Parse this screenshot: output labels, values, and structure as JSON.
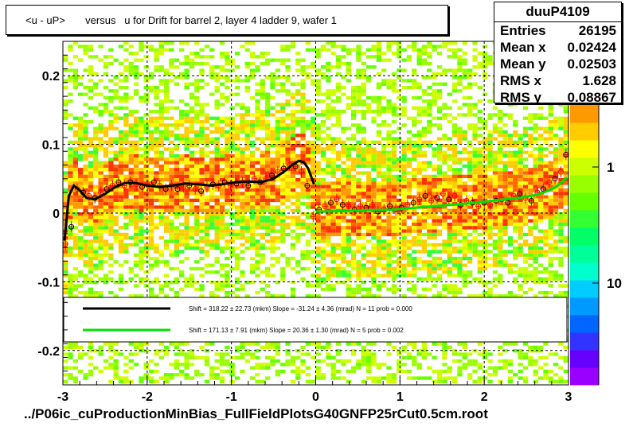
{
  "title": "<u - uP>       versus   u for Drift for barrel 2, layer 4 ladder 9, wafer 1",
  "stats": {
    "name": "duuP4109",
    "rows": [
      {
        "label": "Entries",
        "value": "26195"
      },
      {
        "label": "Mean x",
        "value": "0.02424"
      },
      {
        "label": "Mean y",
        "value": "0.02503"
      },
      {
        "label": "RMS x",
        "value": "1.628"
      },
      {
        "label": "RMS y",
        "value": "0.08867"
      }
    ]
  },
  "footer": "../P06ic_cuProductionMinBias_FullFieldPlotsG40GNFP25rCut0.5cm.root",
  "colors": {
    "fit_black": "#000000",
    "fit_green": "#00e000",
    "points": "#ff0000",
    "palette": [
      "#9900ff",
      "#6600ff",
      "#3333ff",
      "#0066ff",
      "#0099ff",
      "#00ccff",
      "#00ffcc",
      "#00ff99",
      "#00ff66",
      "#33ff33",
      "#66ff00",
      "#99ff00",
      "#ccff00",
      "#ffff00",
      "#ffcc00",
      "#ff9900"
    ]
  },
  "chart_data": {
    "type": "heatmap",
    "title": "<u - uP>       versus   u for Drift for barrel 2, layer 4 ladder 9, wafer 1",
    "xlabel": "",
    "ylabel": "",
    "xlim": [
      -3,
      3
    ],
    "ylim": [
      -0.25,
      0.25
    ],
    "x_ticks": [
      "-3",
      "-2",
      "-1",
      "0",
      "1",
      "2",
      "3"
    ],
    "y_ticks": [
      "-0.2",
      "-0.1",
      "0",
      "0.1",
      "0.2"
    ],
    "z_scale": "log",
    "z_ticks": [
      "1",
      "10"
    ],
    "z_tick_top_partial": "0",
    "grid": true,
    "profile_points": {
      "x": [
        -2.97,
        -2.9,
        -2.83,
        -2.76,
        -2.69,
        -2.62,
        -2.55,
        -2.48,
        -2.41,
        -2.34,
        -2.27,
        -2.2,
        -2.13,
        -2.06,
        -1.99,
        -1.92,
        -1.85,
        -1.78,
        -1.71,
        -1.64,
        -1.57,
        -1.5,
        -1.43,
        -1.36,
        -1.29,
        -1.22,
        -1.15,
        -1.08,
        -1.01,
        -0.94,
        -0.87,
        -0.8,
        -0.73,
        -0.66,
        -0.59,
        -0.52,
        -0.45,
        -0.38,
        -0.31,
        -0.24,
        -0.17,
        -0.1,
        -0.03,
        0.04,
        0.11,
        0.18,
        0.25,
        0.32,
        0.39,
        0.46,
        0.53,
        0.6,
        0.67,
        0.74,
        0.81,
        0.88,
        0.95,
        1.02,
        1.09,
        1.16,
        1.23,
        1.3,
        1.37,
        1.44,
        1.51,
        1.58,
        1.65,
        1.72,
        1.79,
        1.86,
        1.93,
        2.0,
        2.07,
        2.14,
        2.21,
        2.28,
        2.35,
        2.42,
        2.49,
        2.56,
        2.63,
        2.7,
        2.77,
        2.84,
        2.91,
        2.97
      ],
      "y": [
        -0.045,
        -0.02,
        0.035,
        0.03,
        0.025,
        0.022,
        0.03,
        0.035,
        0.04,
        0.045,
        0.04,
        0.045,
        0.042,
        0.038,
        0.04,
        0.045,
        0.04,
        0.035,
        0.04,
        0.035,
        0.038,
        0.04,
        0.035,
        0.032,
        0.038,
        0.042,
        0.04,
        0.045,
        0.04,
        0.043,
        0.045,
        0.04,
        0.05,
        0.045,
        0.05,
        0.055,
        0.06,
        0.065,
        0.07,
        0.068,
        0.06,
        0.04,
        -0.005,
        0.005,
        0.01,
        0.015,
        0.02,
        0.012,
        0.01,
        0.005,
        0.01,
        0.008,
        0.012,
        0.002,
        0.005,
        0.01,
        0.005,
        0.008,
        0.012,
        0.015,
        0.02,
        0.025,
        0.018,
        0.022,
        0.028,
        0.02,
        0.025,
        0.012,
        0.018,
        0.015,
        0.01,
        0.015,
        0.012,
        0.018,
        0.02,
        0.015,
        0.025,
        0.028,
        0.022,
        0.018,
        0.03,
        0.035,
        0.045,
        0.05,
        0.06,
        0.085
      ]
    },
    "series": [
      {
        "fit": "black",
        "legend": "Shift =   318.22 ± 22.73 (mkm) Slope =   -31.24 ± 4.36 (mrad)  N = 11 prob = 0.000",
        "x": [
          -2.98,
          -2.93,
          -2.87,
          -2.8,
          -2.72,
          -2.62,
          -2.5,
          -2.38,
          -2.26,
          -2.14,
          -2.0,
          -1.85,
          -1.7,
          -1.55,
          -1.4,
          -1.25,
          -1.1,
          -0.95,
          -0.8,
          -0.65,
          -0.5,
          -0.38,
          -0.28,
          -0.2,
          -0.14,
          -0.09,
          -0.05,
          -0.02
        ],
        "y": [
          -0.04,
          0.025,
          0.04,
          0.033,
          0.022,
          0.02,
          0.028,
          0.038,
          0.044,
          0.044,
          0.04,
          0.038,
          0.04,
          0.043,
          0.042,
          0.04,
          0.042,
          0.045,
          0.046,
          0.045,
          0.05,
          0.06,
          0.07,
          0.076,
          0.074,
          0.065,
          0.052,
          0.042
        ]
      },
      {
        "fit": "green",
        "legend": "Shift =   171.13 ± 7.91 (mkm) Slope =    20.36 ± 1.30 (mrad)  N = 5 prob = 0.002",
        "x": [
          0.0,
          0.3,
          0.6,
          0.9,
          1.2,
          1.5,
          1.8,
          2.1,
          2.4,
          2.6,
          2.75,
          2.85,
          2.92,
          2.98
        ],
        "y": [
          0.002,
          0.003,
          0.004,
          0.005,
          0.008,
          0.011,
          0.014,
          0.018,
          0.022,
          0.026,
          0.032,
          0.038,
          0.045,
          0.052
        ]
      }
    ],
    "legend_position": "bottom-center"
  }
}
